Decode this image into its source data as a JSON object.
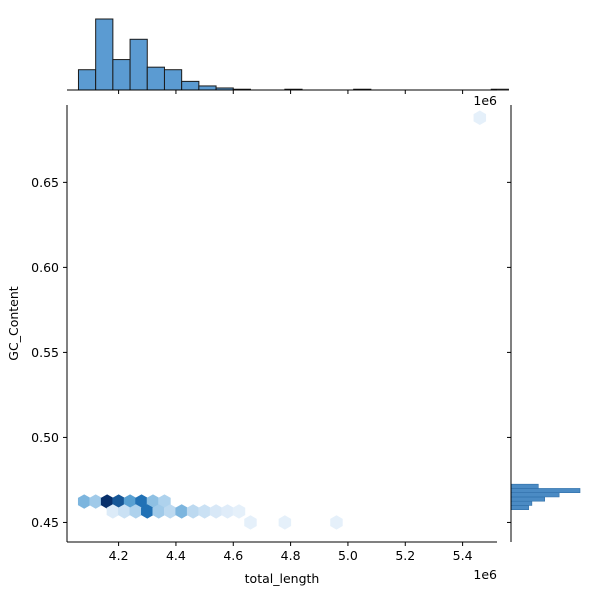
{
  "chart_data": {
    "type": "hexbin-jointplot",
    "xlabel": "total_length",
    "ylabel": "GC_Content",
    "x_offset_text": "1e6",
    "x_tick_labels": [
      "4.2",
      "4.4",
      "4.6",
      "4.8",
      "5.0",
      "5.2",
      "5.4"
    ],
    "y_tick_labels": [
      "0.45",
      "0.50",
      "0.55",
      "0.60",
      "0.65"
    ],
    "xlim": [
      4.02,
      5.52
    ],
    "ylim": [
      0.4385,
      0.6955
    ],
    "grid": false,
    "colors": {
      "hist_fill": "#5b9bd2",
      "hist_edge": "#1a1a1a",
      "hex_dark": "#08306b",
      "hex_light": "#eef5fc",
      "axis": "#000000"
    },
    "hexbins": [
      {
        "x": 4.08,
        "y": 0.4623,
        "level": 0.45
      },
      {
        "x": 4.12,
        "y": 0.4623,
        "level": 0.35
      },
      {
        "x": 4.16,
        "y": 0.4623,
        "level": 1.0
      },
      {
        "x": 4.2,
        "y": 0.4623,
        "level": 0.85
      },
      {
        "x": 4.24,
        "y": 0.4623,
        "level": 0.55
      },
      {
        "x": 4.28,
        "y": 0.4623,
        "level": 0.75
      },
      {
        "x": 4.32,
        "y": 0.4623,
        "level": 0.4
      },
      {
        "x": 4.36,
        "y": 0.4623,
        "level": 0.3
      },
      {
        "x": 4.18,
        "y": 0.4565,
        "level": 0.12
      },
      {
        "x": 4.22,
        "y": 0.4565,
        "level": 0.2
      },
      {
        "x": 4.26,
        "y": 0.4565,
        "level": 0.3
      },
      {
        "x": 4.3,
        "y": 0.4565,
        "level": 0.75
      },
      {
        "x": 4.34,
        "y": 0.4565,
        "level": 0.35
      },
      {
        "x": 4.38,
        "y": 0.4565,
        "level": 0.25
      },
      {
        "x": 4.42,
        "y": 0.4565,
        "level": 0.45
      },
      {
        "x": 4.46,
        "y": 0.4565,
        "level": 0.25
      },
      {
        "x": 4.5,
        "y": 0.4565,
        "level": 0.2
      },
      {
        "x": 4.54,
        "y": 0.4565,
        "level": 0.15
      },
      {
        "x": 4.58,
        "y": 0.4565,
        "level": 0.1
      },
      {
        "x": 4.62,
        "y": 0.4565,
        "level": 0.06
      },
      {
        "x": 4.66,
        "y": 0.45,
        "level": 0.06
      },
      {
        "x": 4.78,
        "y": 0.45,
        "level": 0.06
      },
      {
        "x": 4.96,
        "y": 0.45,
        "level": 0.06
      },
      {
        "x": 5.46,
        "y": 0.688,
        "level": 0.06
      }
    ],
    "x_hist": {
      "bin_start": 4.06,
      "bin_width": 0.06,
      "counts": [
        4,
        14,
        6,
        10,
        4.5,
        4,
        1.7,
        0.8,
        0.4,
        0.15,
        0,
        0,
        0.15,
        0,
        0,
        0,
        0.15,
        0,
        0,
        0,
        0,
        0,
        0,
        0,
        0.15
      ]
    },
    "y_hist": {
      "bin_start": 0.445,
      "bin_width": 0.0025,
      "counts": [
        0,
        0,
        0,
        0,
        0,
        11,
        13,
        21,
        30,
        43,
        17,
        0
      ]
    }
  }
}
